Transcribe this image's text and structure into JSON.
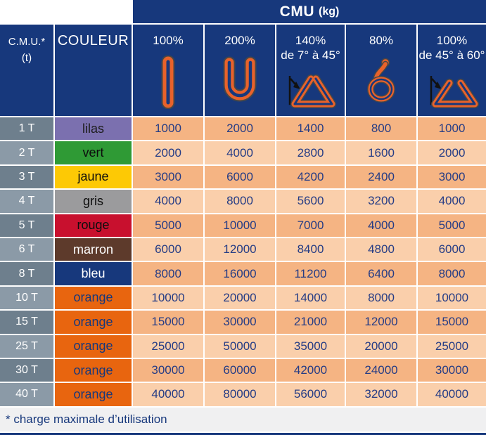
{
  "header": {
    "cmu_title_main": "CMU",
    "cmu_title_unit": "(kg)",
    "corner_line1": "C.M.U.*",
    "corner_line2": "(t)",
    "couleur_label": "COULEUR",
    "columns": [
      {
        "label": "100%",
        "sublabel": "",
        "icon": "vertical-sling-icon"
      },
      {
        "label": "200%",
        "sublabel": "",
        "icon": "basket-sling-icon"
      },
      {
        "label": "140%",
        "sublabel": "de 7° à  45°",
        "icon": "angle-sling-7-45-icon"
      },
      {
        "label": "80%",
        "sublabel": "",
        "icon": "choker-sling-icon"
      },
      {
        "label": "100%",
        "sublabel": "de 45° à  60°",
        "icon": "angle-sling-45-60-icon"
      }
    ]
  },
  "rows": [
    {
      "t": "1 T",
      "couleur": "lilas",
      "bg": "#7B70AF",
      "fg": "#1c1c1c",
      "values": [
        "1000",
        "2000",
        "1400",
        "800",
        "1000"
      ]
    },
    {
      "t": "2 T",
      "couleur": "vert",
      "bg": "#2F9A35",
      "fg": "#0d0d0d",
      "values": [
        "2000",
        "4000",
        "2800",
        "1600",
        "2000"
      ]
    },
    {
      "t": "3 T",
      "couleur": "jaune",
      "bg": "#FDC905",
      "fg": "#0d0d0d",
      "values": [
        "3000",
        "6000",
        "4200",
        "2400",
        "3000"
      ]
    },
    {
      "t": "4 T",
      "couleur": "gris",
      "bg": "#9B9B9D",
      "fg": "#0d0d0d",
      "values": [
        "4000",
        "8000",
        "5600",
        "3200",
        "4000"
      ]
    },
    {
      "t": "5 T",
      "couleur": "rouge",
      "bg": "#C8102E",
      "fg": "#0d0d0d",
      "values": [
        "5000",
        "10000",
        "7000",
        "4000",
        "5000"
      ]
    },
    {
      "t": "6 T",
      "couleur": "marron",
      "bg": "#5D3A2B",
      "fg": "#ffffff",
      "values": [
        "6000",
        "12000",
        "8400",
        "4800",
        "6000"
      ]
    },
    {
      "t": "8 T",
      "couleur": "bleu",
      "bg": "#17387C",
      "fg": "#ffffff",
      "values": [
        "8000",
        "16000",
        "11200",
        "6400",
        "8000"
      ]
    },
    {
      "t": "10 T",
      "couleur": "orange",
      "bg": "#E8650F",
      "fg": "#17387C",
      "values": [
        "10000",
        "20000",
        "14000",
        "8000",
        "10000"
      ]
    },
    {
      "t": "15 T",
      "couleur": "orange",
      "bg": "#E8650F",
      "fg": "#17387C",
      "values": [
        "15000",
        "30000",
        "21000",
        "12000",
        "15000"
      ]
    },
    {
      "t": "25 T",
      "couleur": "orange",
      "bg": "#E8650F",
      "fg": "#17387C",
      "values": [
        "25000",
        "50000",
        "35000",
        "20000",
        "25000"
      ]
    },
    {
      "t": "30 T",
      "couleur": "orange",
      "bg": "#E8650F",
      "fg": "#17387C",
      "values": [
        "30000",
        "60000",
        "42000",
        "24000",
        "30000"
      ]
    },
    {
      "t": "40 T",
      "couleur": "orange",
      "bg": "#E8650F",
      "fg": "#17387C",
      "values": [
        "40000",
        "80000",
        "56000",
        "32000",
        "40000"
      ]
    }
  ],
  "footer": {
    "note": "* charge maximale d’utilisation"
  },
  "colors": {
    "header_navy": "#17387C",
    "peach_dark": "#F5B483",
    "peach_light": "#FACFAB",
    "slate_dark": "#6E7F8D",
    "slate_light": "#8B9AA7",
    "value_text": "#253C85",
    "footer_bg": "#F0F0F1",
    "icon_orange": "#E8622B",
    "bottom_border": "#17387C"
  }
}
